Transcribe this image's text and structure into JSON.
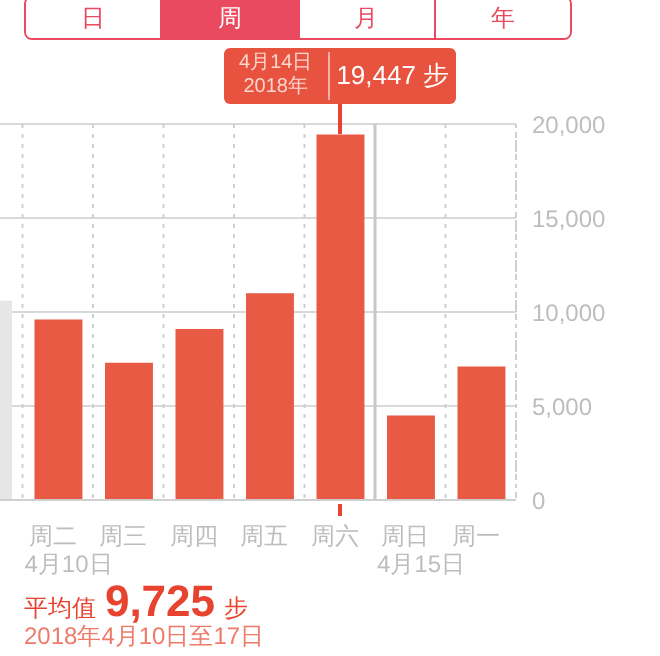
{
  "chart_data": {
    "type": "bar",
    "categories": [
      null,
      "周二",
      "周三",
      "周四",
      "周五",
      "周六",
      "周日",
      "周一"
    ],
    "values": [
      10600,
      9600,
      7300,
      9100,
      11000,
      19447,
      4500,
      7100
    ],
    "colors": [
      "#e6e6e6",
      "#e95a45",
      "#e95a45",
      "#e95a45",
      "#e95a45",
      "#e95a45",
      "#e95a45",
      "#e95a45"
    ],
    "ylim": [
      0,
      20000
    ],
    "yticks": [
      0,
      {
        "value": 5000,
        "label": "5,000"
      },
      {
        "value": 10000,
        "label": "10,000"
      },
      {
        "value": 15000,
        "label": "15,000"
      },
      {
        "value": 20000,
        "label": "20,000"
      }
    ],
    "grid": true,
    "ref_lines": [
      {
        "axis": "x",
        "value": "周日",
        "label": "4月15日",
        "color": "#c8c8c8"
      }
    ],
    "annotations": [
      "日",
      "周",
      "月",
      "年",
      {
        "text": "19,447 步",
        "x": "周六",
        "y": 19447
      },
      "4月14日",
      "2018年",
      "4月10日",
      "平均值 9,725 步",
      "2018年4月10日至17日"
    ]
  }
}
